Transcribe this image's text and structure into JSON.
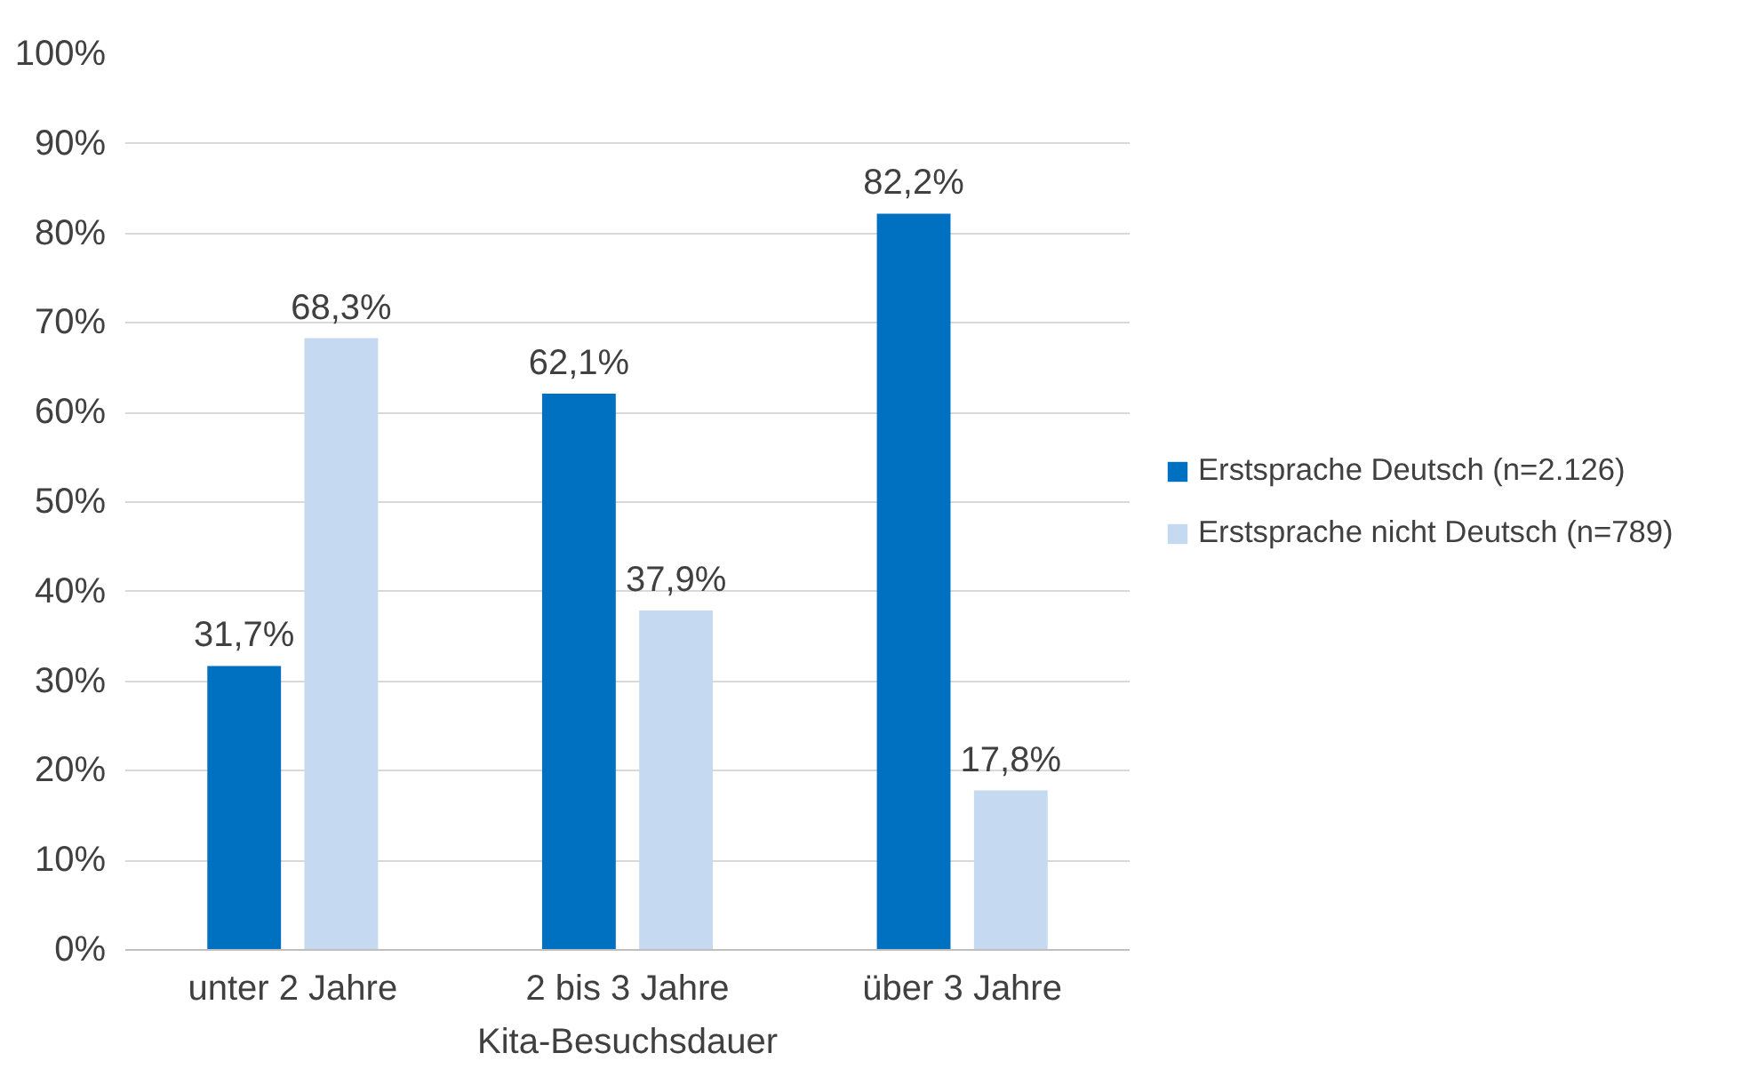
{
  "chart_data": {
    "type": "bar",
    "xlabel": "Kita-Besuchsdauer",
    "categories": [
      "unter 2 Jahre",
      "2 bis 3 Jahre",
      "über 3 Jahre"
    ],
    "series": [
      {
        "name": "Erstsprache Deutsch (n=2.126)",
        "color": "#0070c0",
        "values": [
          31.7,
          62.1,
          82.2
        ],
        "value_labels": [
          "31,7%",
          "62,1%",
          "82,2%"
        ]
      },
      {
        "name": "Erstsprache nicht Deutsch (n=789)",
        "color": "#c5d9f1",
        "values": [
          68.3,
          37.9,
          17.8
        ],
        "value_labels": [
          "68,3%",
          "37,9%",
          "17,8%"
        ]
      }
    ],
    "ylim": [
      0,
      100
    ],
    "yticks": [
      {
        "value": 0,
        "label": "0%"
      },
      {
        "value": 10,
        "label": "10%"
      },
      {
        "value": 20,
        "label": "20%"
      },
      {
        "value": 30,
        "label": "30%"
      },
      {
        "value": 40,
        "label": "40%"
      },
      {
        "value": 50,
        "label": "50%"
      },
      {
        "value": 60,
        "label": "60%"
      },
      {
        "value": 70,
        "label": "70%"
      },
      {
        "value": 80,
        "label": "80%"
      },
      {
        "value": 90,
        "label": "90%"
      },
      {
        "value": 100,
        "label": "100%"
      }
    ],
    "grid": "y",
    "legend": "right"
  }
}
